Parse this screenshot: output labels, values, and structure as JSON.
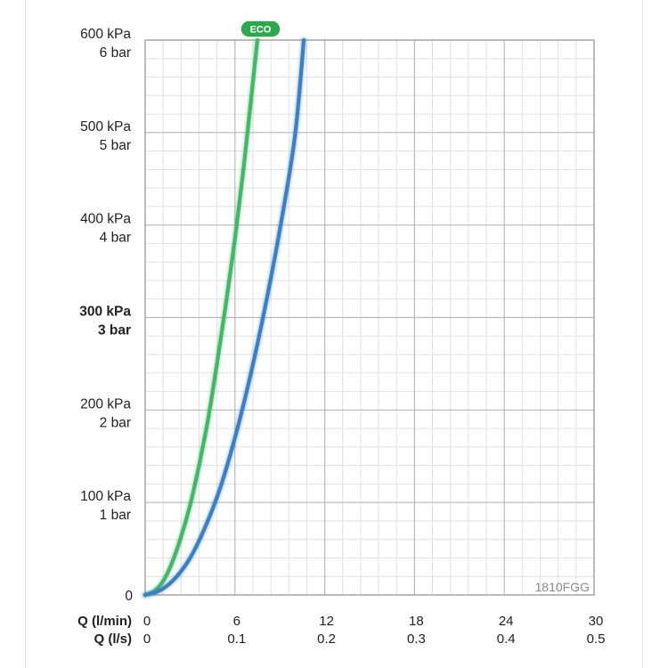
{
  "chart_data": {
    "type": "line",
    "model_code": "1810FGG",
    "eco_badge": "ECO",
    "x_title_primary": "Q (l/min)",
    "x_title_secondary": "Q (l/s)",
    "x_ticks_primary": [
      "0",
      "6",
      "12",
      "18",
      "24",
      "30"
    ],
    "x_ticks_secondary": [
      "0",
      "0.1",
      "0.2",
      "0.3",
      "0.4",
      "0.5"
    ],
    "xlim": [
      0,
      30
    ],
    "y_ticks": [
      {
        "kpa": "0",
        "bar": ""
      },
      {
        "kpa": "100 kPa",
        "bar": "1 bar"
      },
      {
        "kpa": "200 kPa",
        "bar": "2 bar"
      },
      {
        "kpa": "300 kPa",
        "bar": "3 bar",
        "bold": true
      },
      {
        "kpa": "400 kPa",
        "bar": "4 bar"
      },
      {
        "kpa": "500 kPa",
        "bar": "5 bar"
      },
      {
        "kpa": "600 kPa",
        "bar": "6 bar"
      }
    ],
    "ylim": [
      0,
      600
    ],
    "grid": true,
    "series": [
      {
        "color": "#46b569",
        "x": [
          0,
          0.6,
          1.2,
          1.8,
          2.4,
          3.0,
          3.6,
          4.2,
          4.8,
          5.4,
          6.0,
          6.6,
          7.2,
          7.5
        ],
        "y": [
          0,
          4,
          15,
          35,
          63,
          97,
          140,
          190,
          250,
          315,
          385,
          465,
          555,
          600
        ]
      },
      {
        "color": "#3d80c1",
        "x": [
          0,
          1,
          2,
          3,
          4,
          5,
          6,
          7,
          8,
          9,
          10,
          10.6
        ],
        "y": [
          0,
          5,
          18,
          40,
          73,
          115,
          170,
          235,
          310,
          395,
          495,
          600
        ]
      }
    ],
    "colors": {
      "green": "#46b569",
      "blue": "#3d80c1",
      "grid_major": "#b9b9b9",
      "grid_minor": "#e1e1e1"
    }
  }
}
